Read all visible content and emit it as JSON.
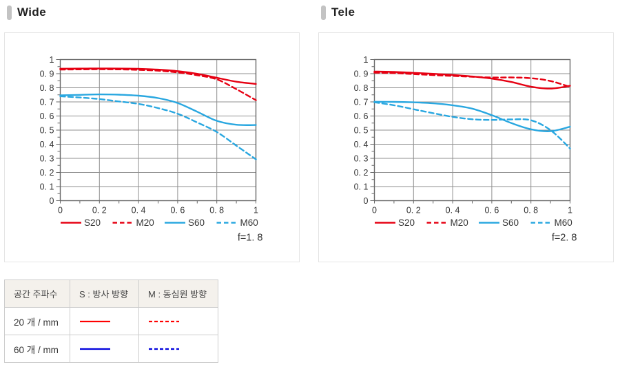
{
  "sections": [
    {
      "title": "Wide"
    },
    {
      "title": "Tele"
    }
  ],
  "colors": {
    "red": "#e60012",
    "cyan": "#29a7e0",
    "table_red": "#ff0000",
    "table_blue": "#0000dd",
    "grid": "#8f8f8f",
    "axis": "#666666",
    "tick_text": "#333333"
  },
  "chart_data": [
    {
      "id": "wide",
      "type": "line",
      "title": "Wide",
      "f_label": "f=1. 8",
      "xlim": [
        0,
        1
      ],
      "ylim": [
        0,
        1
      ],
      "grid": true,
      "legend_position": "bottom",
      "x": [
        0,
        0.1,
        0.2,
        0.3,
        0.4,
        0.5,
        0.6,
        0.7,
        0.8,
        0.9,
        1.0
      ],
      "x_ticks": [
        {
          "v": 0,
          "label": "0"
        },
        {
          "v": 0.2,
          "label": "0. 2"
        },
        {
          "v": 0.4,
          "label": "0. 4"
        },
        {
          "v": 0.6,
          "label": "0. 6"
        },
        {
          "v": 0.8,
          "label": "0. 8"
        },
        {
          "v": 1,
          "label": "1"
        }
      ],
      "y_ticks": [
        {
          "v": 1,
          "label": "1"
        },
        {
          "v": 0.9,
          "label": "0. 9"
        },
        {
          "v": 0.8,
          "label": "0. 8"
        },
        {
          "v": 0.7,
          "label": "0. 7"
        },
        {
          "v": 0.6,
          "label": "0. 6"
        },
        {
          "v": 0.5,
          "label": "0. 5"
        },
        {
          "v": 0.4,
          "label": "0. 4"
        },
        {
          "v": 0.3,
          "label": "0. 3"
        },
        {
          "v": 0.2,
          "label": "0. 2"
        },
        {
          "v": 0.1,
          "label": "0. 1"
        },
        {
          "v": 0,
          "label": "0"
        }
      ],
      "series": [
        {
          "name": "S20",
          "color": "#e60012",
          "dashed": false,
          "values": [
            0.935,
            0.936,
            0.937,
            0.936,
            0.934,
            0.929,
            0.918,
            0.899,
            0.871,
            0.843,
            0.827
          ]
        },
        {
          "name": "M20",
          "color": "#e60012",
          "dashed": true,
          "values": [
            0.929,
            0.93,
            0.931,
            0.93,
            0.927,
            0.921,
            0.909,
            0.889,
            0.86,
            0.79,
            0.712
          ]
        },
        {
          "name": "S60",
          "color": "#29a7e0",
          "dashed": false,
          "values": [
            0.747,
            0.75,
            0.753,
            0.751,
            0.744,
            0.727,
            0.692,
            0.63,
            0.566,
            0.538,
            0.536
          ]
        },
        {
          "name": "M60",
          "color": "#29a7e0",
          "dashed": true,
          "values": [
            0.74,
            0.731,
            0.72,
            0.703,
            0.686,
            0.656,
            0.616,
            0.554,
            0.487,
            0.39,
            0.293
          ]
        }
      ]
    },
    {
      "id": "tele",
      "type": "line",
      "title": "Tele",
      "f_label": "f=2. 8",
      "xlim": [
        0,
        1
      ],
      "ylim": [
        0,
        1
      ],
      "grid": true,
      "legend_position": "bottom",
      "x": [
        0,
        0.1,
        0.2,
        0.3,
        0.4,
        0.5,
        0.6,
        0.7,
        0.8,
        0.9,
        1.0
      ],
      "x_ticks": [
        {
          "v": 0,
          "label": "0"
        },
        {
          "v": 0.2,
          "label": "0. 2"
        },
        {
          "v": 0.4,
          "label": "0. 4"
        },
        {
          "v": 0.6,
          "label": "0. 6"
        },
        {
          "v": 0.8,
          "label": "0. 8"
        },
        {
          "v": 1,
          "label": "1"
        }
      ],
      "y_ticks": [
        {
          "v": 1,
          "label": "1"
        },
        {
          "v": 0.9,
          "label": "0. 9"
        },
        {
          "v": 0.8,
          "label": "0. 8"
        },
        {
          "v": 0.7,
          "label": "0. 7"
        },
        {
          "v": 0.6,
          "label": "0. 6"
        },
        {
          "v": 0.5,
          "label": "0. 5"
        },
        {
          "v": 0.4,
          "label": "0. 4"
        },
        {
          "v": 0.3,
          "label": "0. 3"
        },
        {
          "v": 0.2,
          "label": "0. 2"
        },
        {
          "v": 0.1,
          "label": "0. 1"
        },
        {
          "v": 0,
          "label": "0"
        }
      ],
      "series": [
        {
          "name": "S20",
          "color": "#e60012",
          "dashed": false,
          "values": [
            0.915,
            0.912,
            0.906,
            0.899,
            0.891,
            0.88,
            0.865,
            0.841,
            0.808,
            0.794,
            0.814
          ]
        },
        {
          "name": "M20",
          "color": "#e60012",
          "dashed": true,
          "values": [
            0.907,
            0.904,
            0.897,
            0.89,
            0.884,
            0.878,
            0.873,
            0.873,
            0.868,
            0.848,
            0.806
          ]
        },
        {
          "name": "S60",
          "color": "#29a7e0",
          "dashed": false,
          "values": [
            0.701,
            0.7,
            0.697,
            0.69,
            0.676,
            0.652,
            0.606,
            0.55,
            0.506,
            0.492,
            0.524
          ]
        },
        {
          "name": "M60",
          "color": "#29a7e0",
          "dashed": true,
          "values": [
            0.697,
            0.676,
            0.648,
            0.62,
            0.594,
            0.577,
            0.572,
            0.576,
            0.57,
            0.5,
            0.37
          ]
        }
      ]
    }
  ],
  "table": {
    "headers": [
      "공간 주파수",
      "S : 방사 방향",
      "M : 동심원 방향"
    ],
    "rows": [
      {
        "label": "20 개 / mm",
        "s": {
          "color": "#ff0000",
          "dashed": false
        },
        "m": {
          "color": "#ff0000",
          "dashed": true
        }
      },
      {
        "label": "60 개 / mm",
        "s": {
          "color": "#0000dd",
          "dashed": false
        },
        "m": {
          "color": "#0000dd",
          "dashed": true
        }
      }
    ]
  }
}
